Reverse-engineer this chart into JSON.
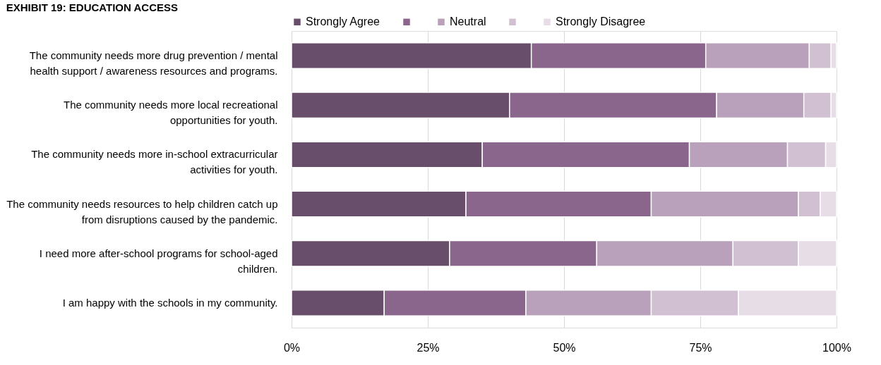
{
  "chart_data": {
    "type": "bar",
    "orientation": "horizontal",
    "stacked": true,
    "title": "EXHIBIT 19: EDUCATION ACCESS",
    "categories": [
      "The community needs more drug prevention / mental health support / awareness resources and programs.",
      "The community needs more local recreational opportunities for youth.",
      "The community needs more in-school extracurricular activities for youth.",
      "The community needs resources to help children catch up from disruptions caused by the pandemic.",
      "I need more after-school programs for school-aged children.",
      "I am happy with the schools in my community."
    ],
    "series": [
      {
        "name": "Strongly Agree",
        "color": "#684e6a",
        "values": [
          44,
          40,
          35,
          32,
          29,
          17
        ]
      },
      {
        "color": "#8b668c",
        "values": [
          32,
          38,
          38,
          34,
          27,
          26
        ]
      },
      {
        "name": "Neutral",
        "color": "#b9a1bb",
        "values": [
          19,
          16,
          18,
          27,
          25,
          23
        ]
      },
      {
        "color": "#d1bfd2",
        "values": [
          4,
          5,
          7,
          4,
          12,
          16
        ]
      },
      {
        "name": "Strongly Disagree",
        "color": "#e6dde7",
        "values": [
          1,
          1,
          2,
          3,
          7,
          18
        ]
      }
    ],
    "xlim": [
      0,
      100
    ],
    "xticks": [
      {
        "value": 0,
        "label": "0%"
      },
      {
        "value": 25,
        "label": "25%"
      },
      {
        "value": 50,
        "label": "50%"
      },
      {
        "value": 75,
        "label": "75%"
      },
      {
        "value": 100,
        "label": "100%"
      }
    ],
    "grid": "x",
    "legend": "top"
  }
}
